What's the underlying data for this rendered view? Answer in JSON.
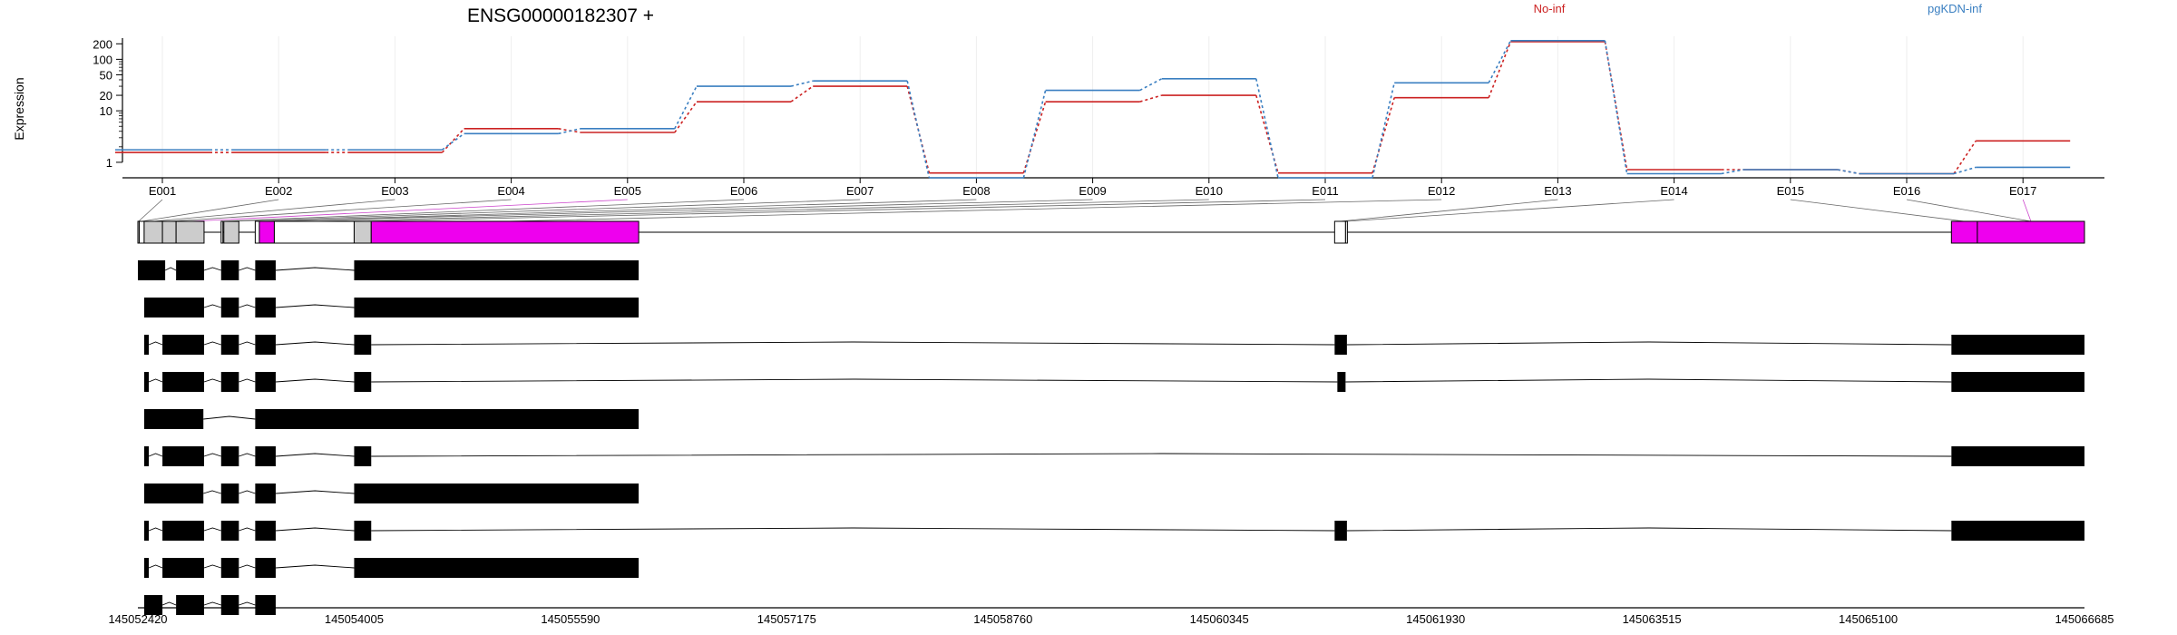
{
  "title": "ENSG00000182307 +",
  "ylabel": "Expression",
  "colors": {
    "no_inf": "#cc2222",
    "pgkdn_inf": "#3a7fc1",
    "exon_tested": "#cccccc",
    "exon_sig": "#ee00ee",
    "exon_untested": "#ffffff",
    "transcript": "#000000"
  },
  "chart_data": {
    "type": "line",
    "title": "ENSG00000182307 +",
    "ylabel": "Expression",
    "yscale": "log",
    "yticks": [
      1,
      10,
      20,
      50,
      100,
      200
    ],
    "ylim": [
      0.5,
      280
    ],
    "categories": [
      "E001",
      "E002",
      "E003",
      "E004",
      "E005",
      "E006",
      "E007",
      "E008",
      "E009",
      "E010",
      "E011",
      "E012",
      "E013",
      "E014",
      "E015",
      "E016",
      "E017"
    ],
    "series": [
      {
        "name": "No-inf",
        "color": "#cc2222",
        "values": [
          1.55,
          1.55,
          1.55,
          4.5,
          3.8,
          15,
          30,
          0.62,
          15,
          20,
          0.62,
          18,
          220,
          0.72,
          0.72,
          0.6,
          2.6
        ]
      },
      {
        "name": "pgKDN-inf",
        "color": "#3a7fc1",
        "values": [
          1.75,
          1.75,
          1.75,
          3.6,
          4.5,
          30,
          38,
          0.5,
          25,
          42,
          0.5,
          35,
          230,
          0.6,
          0.72,
          0.6,
          0.8
        ]
      }
    ],
    "significant_exons": [
      "E005",
      "E017"
    ],
    "genomic_axis": {
      "ticks": [
        "145052420",
        "145054005",
        "145055590",
        "145057175",
        "145058760",
        "145060345",
        "145061930",
        "145063515",
        "145065100",
        "145066685"
      ]
    }
  }
}
